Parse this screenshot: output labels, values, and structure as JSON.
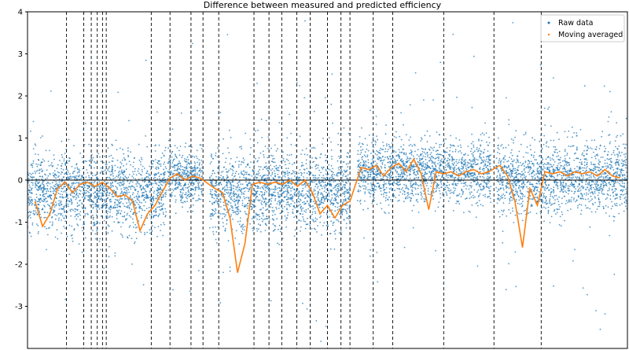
{
  "chart_data": {
    "type": "scatter",
    "title": "Difference between measured and predicted efficiency",
    "xlabel": "",
    "ylabel": "",
    "ylim": [
      -4,
      4
    ],
    "yticks": [
      -3,
      -2,
      -1,
      0,
      1,
      2,
      3,
      4
    ],
    "grid": false,
    "legend_position": "top-right",
    "horizontal_reference_line": 0,
    "series": [
      {
        "name": "Raw data",
        "marker": "point",
        "color": "#1f77b4",
        "segments": [
          {
            "x_start": 0,
            "x_end": 185,
            "mean": -0.3,
            "spread": 0.45
          },
          {
            "x_start": 187,
            "x_end": 233,
            "mean": 0.05,
            "spread": 0.3
          },
          {
            "x_start": 243,
            "x_end": 430,
            "mean": -0.25,
            "spread": 0.45
          },
          {
            "x_start": 440,
            "x_end": 618,
            "mean": 0.2,
            "spread": 0.35
          },
          {
            "x_start": 625,
            "x_end": 800,
            "mean": 0.05,
            "spread": 0.4
          }
        ]
      },
      {
        "name": "Moving averaged",
        "color": "#ff7f0e",
        "x": [
          10,
          20,
          30,
          40,
          50,
          60,
          70,
          80,
          90,
          100,
          110,
          120,
          130,
          140,
          150,
          160,
          170,
          190,
          200,
          210,
          220,
          230,
          250,
          260,
          270,
          280,
          290,
          300,
          310,
          320,
          330,
          340,
          350,
          360,
          370,
          380,
          390,
          400,
          410,
          420,
          430,
          445,
          455,
          465,
          475,
          485,
          495,
          505,
          515,
          525,
          535,
          545,
          555,
          565,
          575,
          585,
          595,
          605,
          615,
          630,
          640,
          650,
          660,
          670,
          680,
          690,
          700,
          710,
          720,
          730,
          740,
          750,
          760,
          770,
          780,
          790
        ],
        "y": [
          -0.5,
          -1.1,
          -0.8,
          -0.2,
          -0.05,
          -0.3,
          -0.1,
          -0.05,
          -0.15,
          -0.05,
          -0.2,
          -0.4,
          -0.35,
          -0.5,
          -1.2,
          -0.8,
          -0.6,
          0.05,
          0.15,
          0.0,
          0.1,
          0.05,
          -0.2,
          -0.3,
          -0.9,
          -2.2,
          -1.5,
          -0.1,
          -0.05,
          -0.1,
          -0.05,
          -0.1,
          0.0,
          -0.15,
          0.0,
          -0.3,
          -0.8,
          -0.6,
          -0.9,
          -0.6,
          -0.5,
          0.3,
          0.25,
          0.35,
          0.1,
          0.3,
          0.4,
          0.2,
          0.5,
          0.15,
          -0.7,
          0.2,
          0.15,
          0.2,
          0.1,
          0.2,
          0.25,
          0.15,
          0.2,
          0.35,
          0.1,
          -0.5,
          -1.6,
          -0.2,
          -0.6,
          0.2,
          0.15,
          0.2,
          0.1,
          0.2,
          0.15,
          0.2,
          0.1,
          0.25,
          0.1,
          0.05
        ]
      }
    ],
    "vertical_dashed_lines_x": [
      52,
      75,
      85,
      93,
      100,
      105,
      165,
      190,
      218,
      234,
      255,
      302,
      322,
      339,
      359,
      377,
      400,
      418,
      430,
      461,
      487,
      555,
      622,
      685
    ]
  }
}
